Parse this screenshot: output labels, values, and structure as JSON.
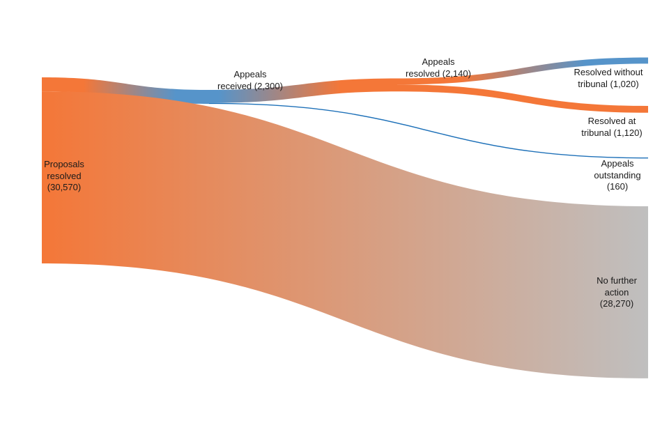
{
  "chart_data": {
    "type": "sankey",
    "unit": "appeals",
    "colors": {
      "orange": "#F47738",
      "blue": "#5694CA",
      "dark_blue": "#1D70B8",
      "grey": "#BFBFBF"
    },
    "nodes": [
      {
        "id": "proposals",
        "label_lines": [
          "Proposals",
          "resolved",
          "(30,570)"
        ],
        "value": 30570,
        "color": "#F47738"
      },
      {
        "id": "received",
        "label_lines": [
          "Appeals",
          "received (2,300)"
        ],
        "value": 2300,
        "color": "#5694CA"
      },
      {
        "id": "resolved",
        "label_lines": [
          "Appeals",
          "resolved (2,140)"
        ],
        "value": 2140,
        "color": "#F47738"
      },
      {
        "id": "without",
        "label_lines": [
          "Resolved without",
          "tribunal (1,020)"
        ],
        "value": 1020,
        "color": "#5694CA"
      },
      {
        "id": "at",
        "label_lines": [
          "Resolved at",
          "tribunal (1,120)"
        ],
        "value": 1120,
        "color": "#F47738"
      },
      {
        "id": "outstanding",
        "label_lines": [
          "Appeals",
          "outstanding",
          "(160)"
        ],
        "value": 160,
        "color": "#1D70B8"
      },
      {
        "id": "nfa",
        "label_lines": [
          "No further",
          "action",
          "(28,270)"
        ],
        "value": 28270,
        "color": "#BFBFBF"
      }
    ],
    "links": [
      {
        "source": "proposals",
        "target": "received",
        "value": 2300
      },
      {
        "source": "proposals",
        "target": "nfa",
        "value": 28270
      },
      {
        "source": "received",
        "target": "resolved",
        "value": 2140
      },
      {
        "source": "received",
        "target": "outstanding",
        "value": 160
      },
      {
        "source": "resolved",
        "target": "without",
        "value": 1020
      },
      {
        "source": "resolved",
        "target": "at",
        "value": 1120
      }
    ]
  }
}
